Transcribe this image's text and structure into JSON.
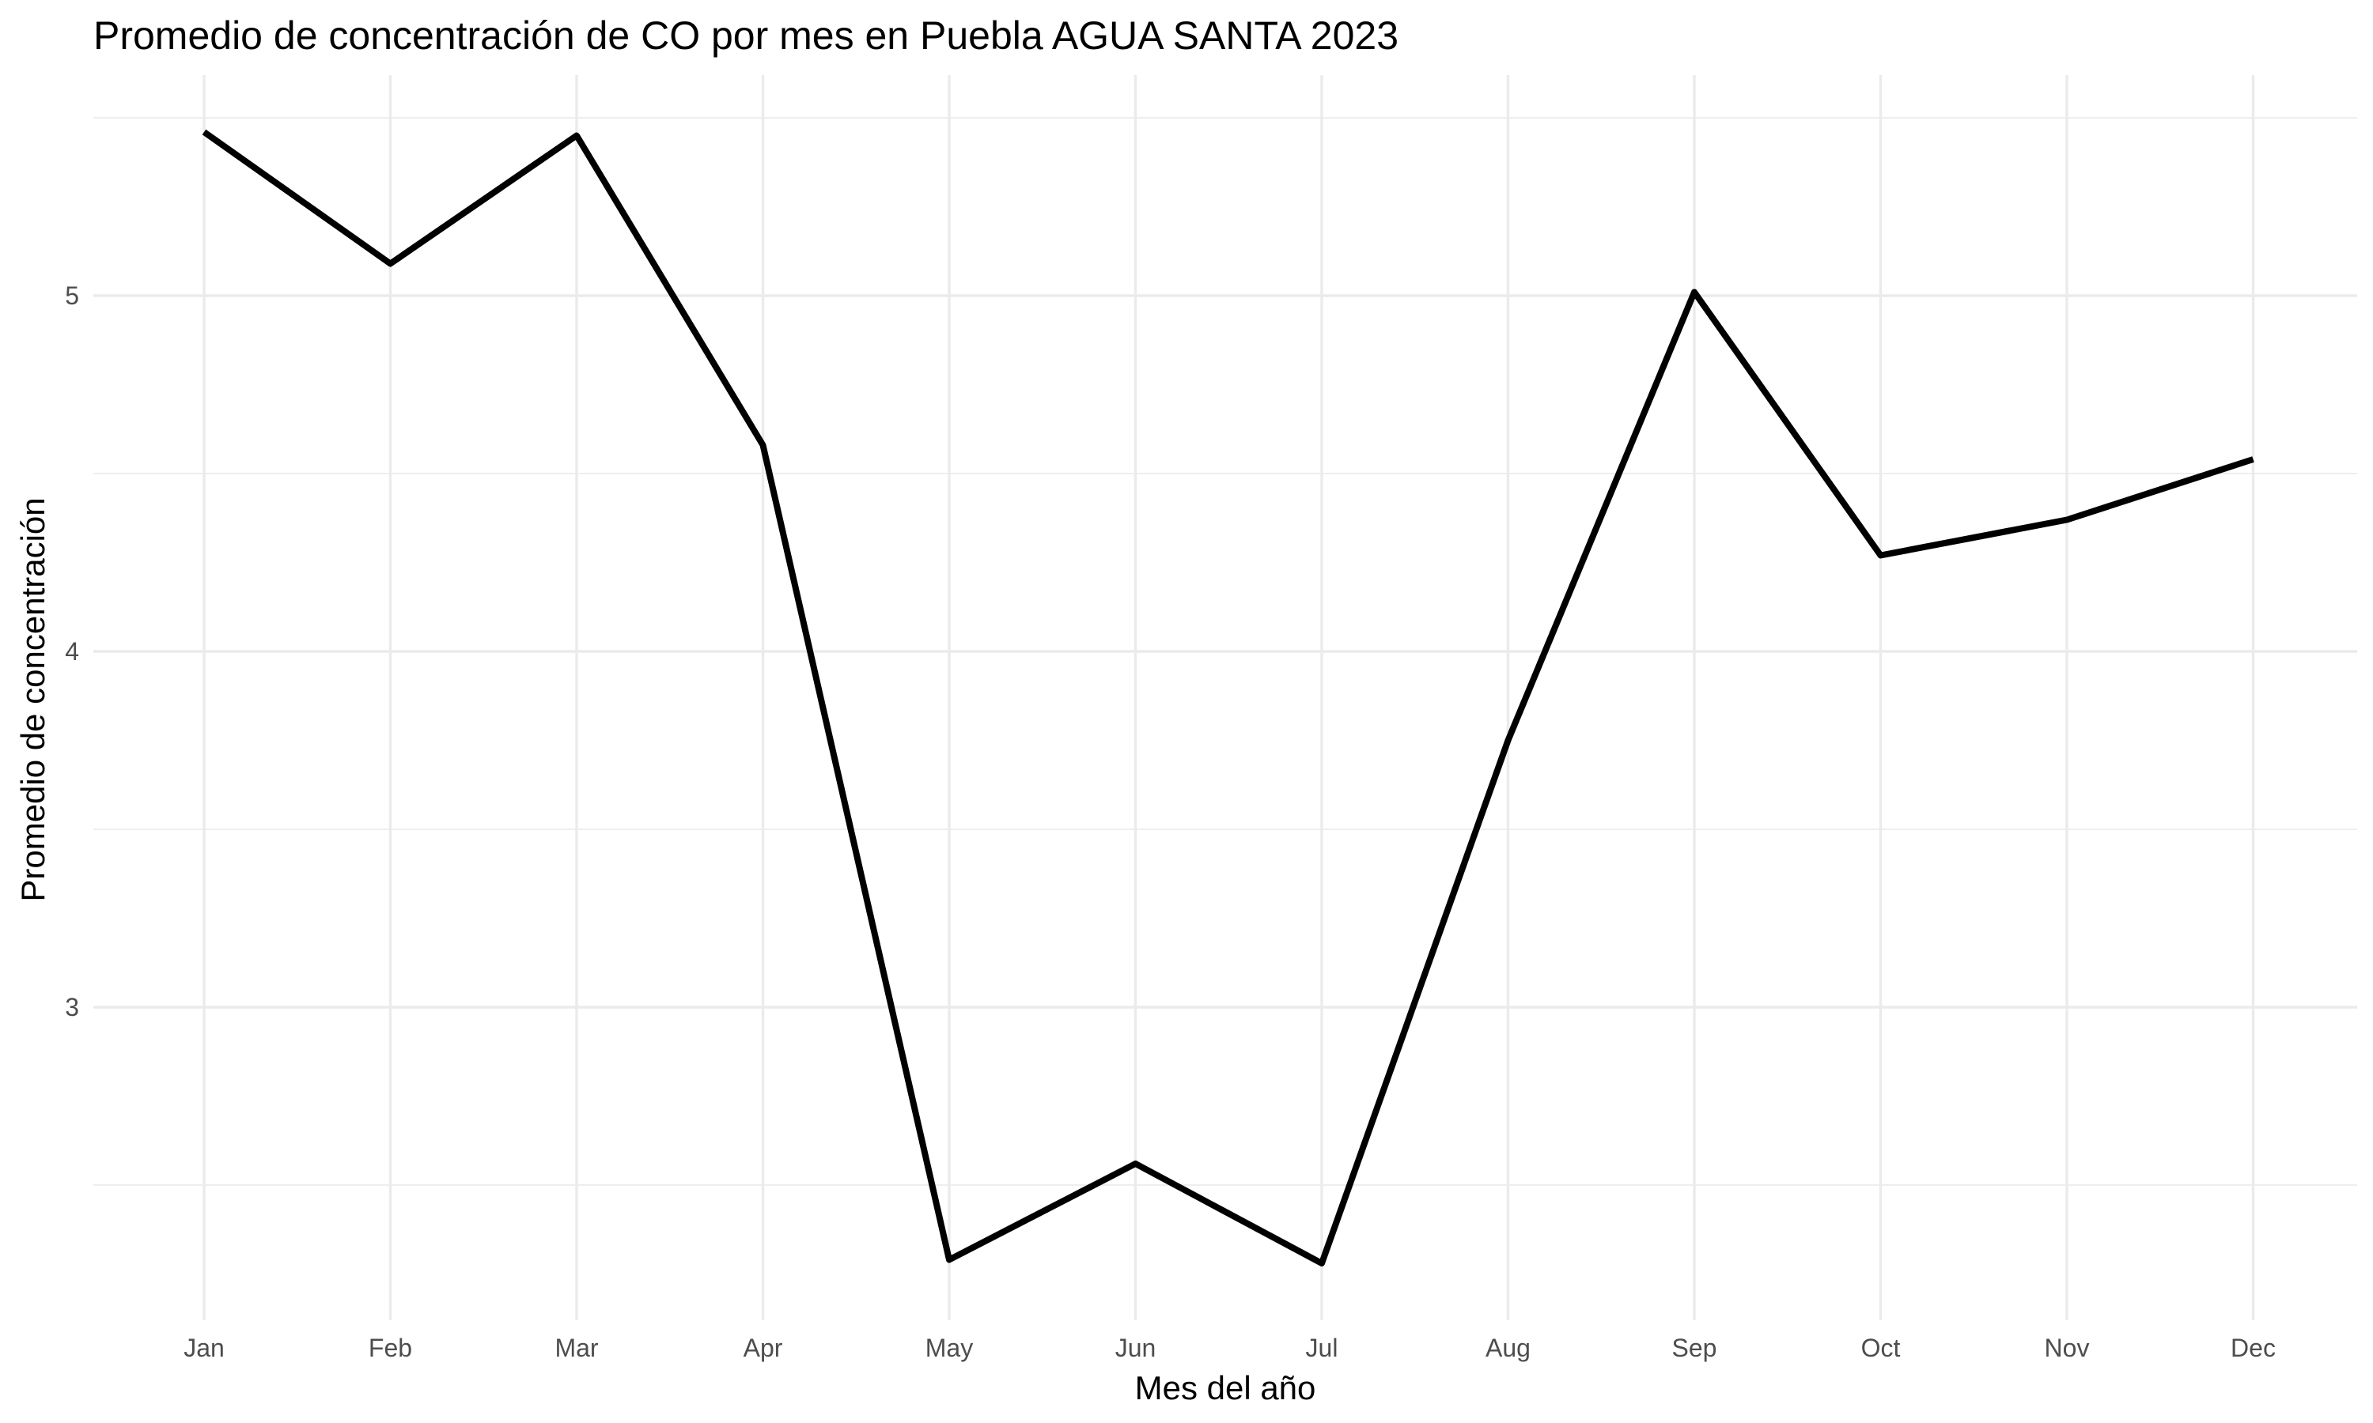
{
  "chart_data": {
    "type": "line",
    "title": "Promedio de concentración de CO por mes en Puebla AGUA SANTA 2023",
    "xlabel": "Mes del año",
    "ylabel": "Promedio de concentración",
    "categories": [
      "Jan",
      "Feb",
      "Mar",
      "Apr",
      "May",
      "Jun",
      "Jul",
      "Aug",
      "Sep",
      "Oct",
      "Nov",
      "Dec"
    ],
    "series": [
      {
        "values": [
          5.46,
          5.09,
          5.45,
          4.58,
          2.29,
          2.56,
          2.28,
          3.75,
          5.01,
          4.27,
          4.37,
          4.54
        ]
      }
    ],
    "yticks": [
      3,
      4,
      5
    ],
    "ylim": [
      2.12,
      5.62
    ],
    "grid": true,
    "legend": "none",
    "line_color": "#000000"
  }
}
